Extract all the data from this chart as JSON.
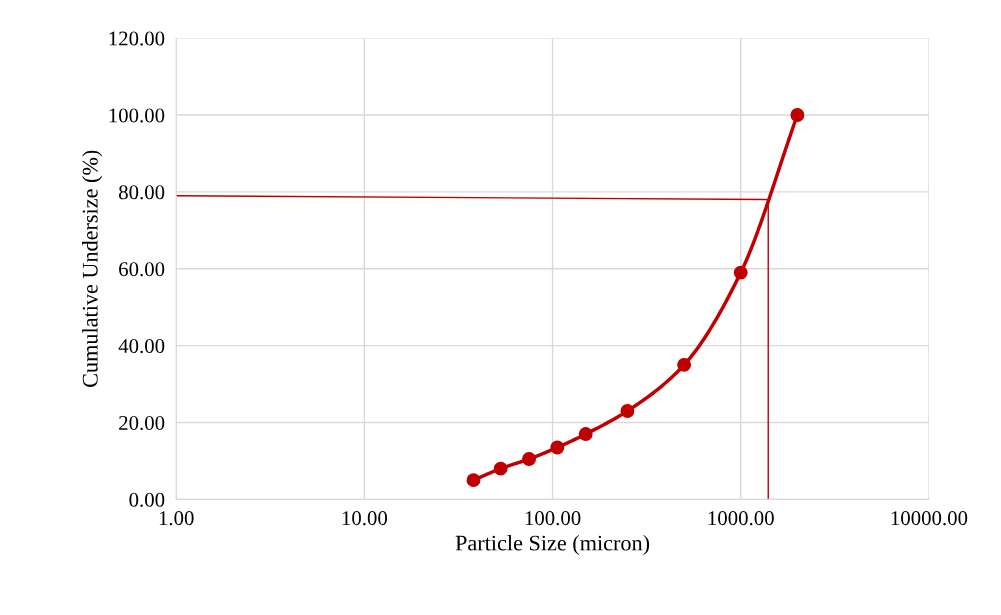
{
  "chart_data": {
    "type": "line",
    "xlabel": "Particle Size (micron)",
    "ylabel": "Cumulative Undersize (%)",
    "log": "x",
    "xlim": [
      1,
      10000
    ],
    "xticks": [
      {
        "value": 1,
        "label": "1.00"
      },
      {
        "value": 10,
        "label": "10.00"
      },
      {
        "value": 100,
        "label": "100.00"
      },
      {
        "value": 1000,
        "label": "1000.00"
      },
      {
        "value": 10000,
        "label": "10000.00"
      }
    ],
    "ylim": [
      0,
      120
    ],
    "yticks": [
      {
        "value": 0,
        "label": "0.00"
      },
      {
        "value": 20,
        "label": "20.00"
      },
      {
        "value": 40,
        "label": "40.00"
      },
      {
        "value": 60,
        "label": "60.00"
      },
      {
        "value": 80,
        "label": "80.00"
      },
      {
        "value": 100,
        "label": "100.00"
      },
      {
        "value": 120,
        "label": "120.00"
      }
    ],
    "grid": true,
    "line_style": "solid",
    "series": [
      {
        "color": "#c00000",
        "marker": "circle",
        "x": [
          38,
          53,
          75,
          106,
          150,
          250,
          500,
          1000,
          2000
        ],
        "values": [
          5,
          8,
          10.5,
          13.5,
          17,
          23,
          35,
          59,
          100
        ]
      },
      {
        "color": "#c00000",
        "marker": "none",
        "x": [
          1,
          1400
        ],
        "values": [
          79,
          78
        ]
      },
      {
        "color": "#c00000",
        "marker": "none",
        "x": [
          1400,
          1400
        ],
        "values": [
          78,
          0
        ]
      }
    ]
  }
}
